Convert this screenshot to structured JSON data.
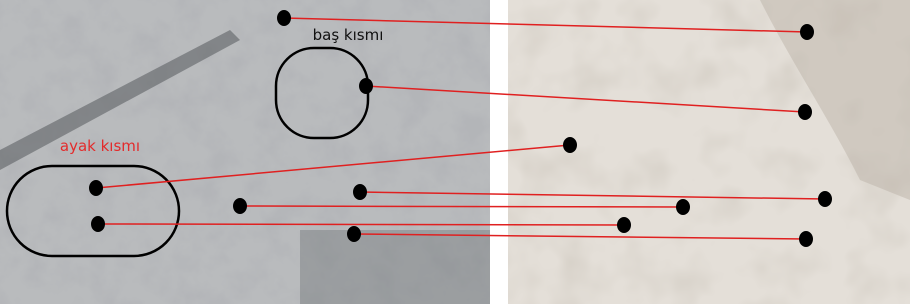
{
  "labels": {
    "head": "baş kısmı",
    "foot": "ayak kısmı"
  }
}
